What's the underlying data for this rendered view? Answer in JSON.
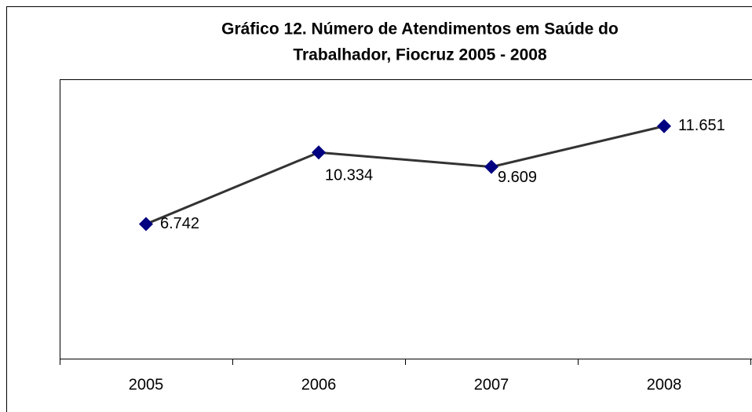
{
  "chart_data": {
    "type": "line",
    "title": [
      "Gráfico 12. Número de Atendimentos em Saúde do",
      "Trabalhador, Fiocruz 2005 - 2008"
    ],
    "categories": [
      "2005",
      "2006",
      "2007",
      "2008"
    ],
    "values": [
      6742,
      10334,
      9609,
      11651
    ],
    "value_labels": [
      "6.742",
      "10.334",
      "9.609",
      "11.651"
    ],
    "color": "#333333",
    "marker_color": "#000080",
    "ylim": [
      0,
      14000
    ]
  }
}
